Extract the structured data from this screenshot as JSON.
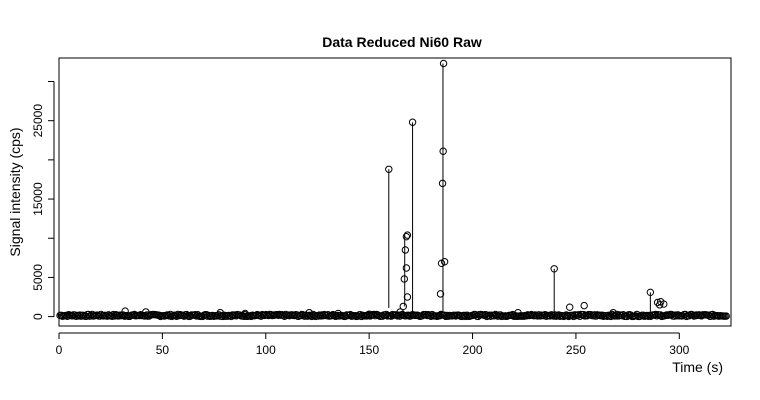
{
  "chart_data": {
    "type": "scatter",
    "title": "Data Reduced Ni60 Raw",
    "xlabel": "Time (s)",
    "ylabel": "Signal intensity (cps)",
    "xlim": [
      0,
      325
    ],
    "ylim": [
      -1200,
      33000
    ],
    "xticks": [
      0,
      50,
      100,
      150,
      200,
      250,
      300
    ],
    "yticks": [
      0,
      5000,
      15000,
      25000
    ],
    "yticks_unlabeled": [
      10000,
      20000,
      30000
    ],
    "grid": false,
    "legend": "none",
    "baseline": {
      "x_start": 0.5,
      "x_end": 323,
      "step": 0.6,
      "level": 150
    },
    "points": [
      {
        "x": 32,
        "y": 700
      },
      {
        "x": 42,
        "y": 600
      },
      {
        "x": 78,
        "y": 500
      },
      {
        "x": 90,
        "y": 400
      },
      {
        "x": 121,
        "y": 500
      },
      {
        "x": 135,
        "y": 400
      },
      {
        "x": 150,
        "y": 300
      },
      {
        "x": 159.5,
        "y": 18800
      },
      {
        "x": 165,
        "y": 600
      },
      {
        "x": 166.5,
        "y": 1300
      },
      {
        "x": 167,
        "y": 4800
      },
      {
        "x": 167.5,
        "y": 8500
      },
      {
        "x": 168,
        "y": 10200
      },
      {
        "x": 168.5,
        "y": 10400
      },
      {
        "x": 168,
        "y": 6200
      },
      {
        "x": 168.5,
        "y": 2500
      },
      {
        "x": 171,
        "y": 24800
      },
      {
        "x": 184.5,
        "y": 2900
      },
      {
        "x": 185,
        "y": 6800
      },
      {
        "x": 185.5,
        "y": 17000
      },
      {
        "x": 185.8,
        "y": 21100
      },
      {
        "x": 186,
        "y": 32300
      },
      {
        "x": 186.5,
        "y": 7000
      },
      {
        "x": 222,
        "y": 500
      },
      {
        "x": 239.5,
        "y": 6100
      },
      {
        "x": 247,
        "y": 1200
      },
      {
        "x": 254,
        "y": 1400
      },
      {
        "x": 268,
        "y": 500
      },
      {
        "x": 286,
        "y": 3100
      },
      {
        "x": 289.5,
        "y": 1800
      },
      {
        "x": 290.5,
        "y": 1500
      },
      {
        "x": 291,
        "y": 1900
      },
      {
        "x": 292.5,
        "y": 1600
      }
    ],
    "spikes": [
      {
        "x": 159.5,
        "from": 1100,
        "to": 18800
      },
      {
        "x": 167.2,
        "from": 1300,
        "to": 10400
      },
      {
        "x": 171,
        "from": 400,
        "to": 24800
      },
      {
        "x": 185.7,
        "from": 500,
        "to": 32300
      },
      {
        "x": 239.5,
        "from": 400,
        "to": 6100
      },
      {
        "x": 286,
        "from": 400,
        "to": 3100
      }
    ]
  }
}
